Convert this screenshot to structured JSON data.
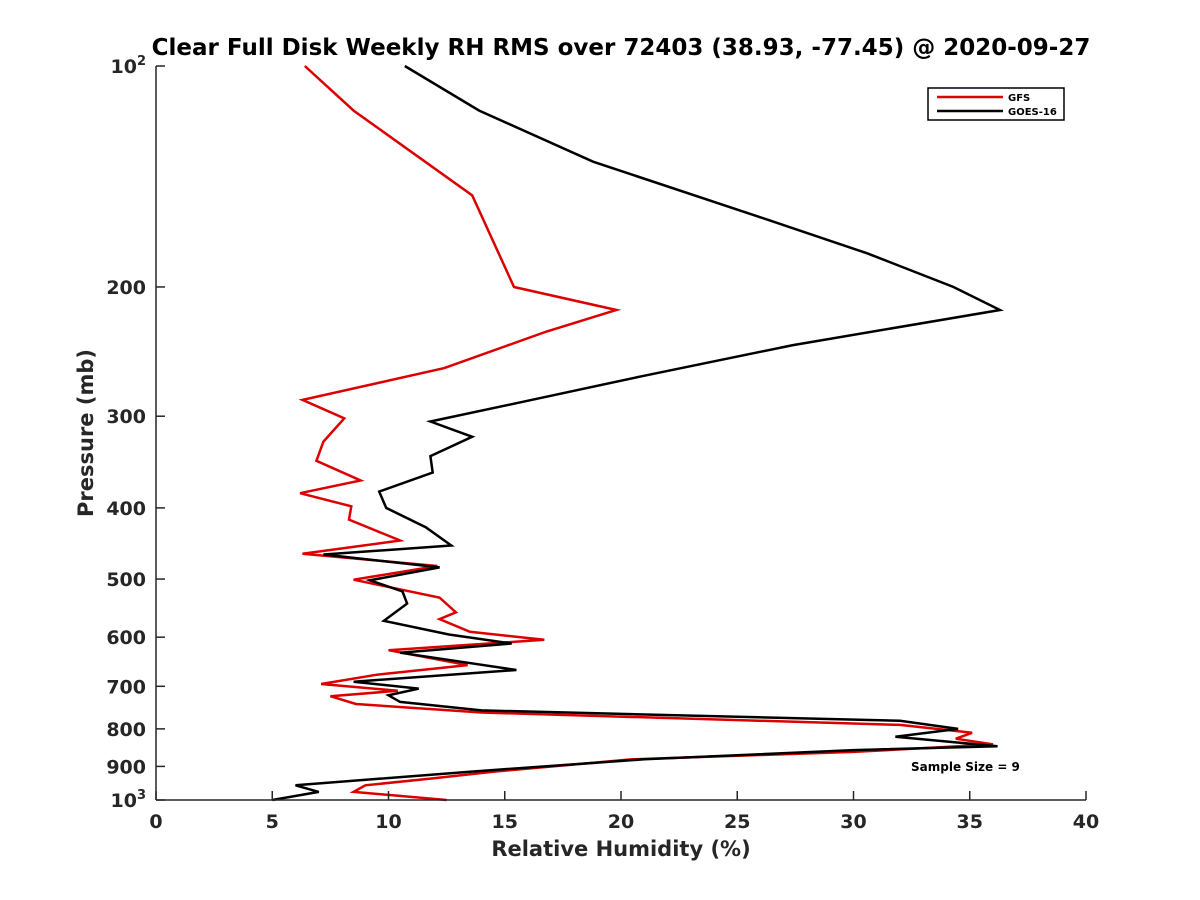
{
  "chart_data": {
    "type": "line",
    "title": "Clear Full Disk Weekly RH RMS over 72403 (38.93, -77.45) @ 2020-09-27",
    "xlabel": "Relative Humidity (%)",
    "ylabel": "Pressure (mb)",
    "xlim": [
      0,
      40
    ],
    "ylim": [
      100,
      1000
    ],
    "yscale": "log",
    "y_reversed": true,
    "x_ticks": [
      "0",
      "5",
      "10",
      "15",
      "20",
      "25",
      "30",
      "35",
      "40"
    ],
    "y_ticks": [
      {
        "value": 100,
        "base": "10",
        "exp": "2"
      },
      {
        "value": 200,
        "label": "200"
      },
      {
        "value": 300,
        "label": "300"
      },
      {
        "value": 400,
        "label": "400"
      },
      {
        "value": 500,
        "label": "500"
      },
      {
        "value": 600,
        "label": "600"
      },
      {
        "value": 700,
        "label": "700"
      },
      {
        "value": 800,
        "label": "800"
      },
      {
        "value": 900,
        "label": "900"
      },
      {
        "value": 1000,
        "base": "10",
        "exp": "3"
      }
    ],
    "legend_position": "top-right",
    "annotation": "Sample Size = 9",
    "series": [
      {
        "name": "GFS",
        "color": "#dd0000",
        "points": [
          [
            6.4,
            100
          ],
          [
            8.5,
            115
          ],
          [
            13.6,
            150
          ],
          [
            15.4,
            200
          ],
          [
            19.8,
            215
          ],
          [
            16.8,
            230
          ],
          [
            12.4,
            258
          ],
          [
            6.3,
            285
          ],
          [
            8.1,
            302
          ],
          [
            7.2,
            325
          ],
          [
            6.9,
            345
          ],
          [
            8.8,
            367
          ],
          [
            6.2,
            382
          ],
          [
            8.4,
            398
          ],
          [
            8.3,
            415
          ],
          [
            10.5,
            443
          ],
          [
            6.3,
            462
          ],
          [
            12.1,
            480
          ],
          [
            8.5,
            501
          ],
          [
            12.2,
            530
          ],
          [
            12.9,
            555
          ],
          [
            12.2,
            567
          ],
          [
            13.5,
            590
          ],
          [
            16.7,
            605
          ],
          [
            10.0,
            625
          ],
          [
            13.4,
            655
          ],
          [
            9.5,
            675
          ],
          [
            7.1,
            695
          ],
          [
            10.4,
            710
          ],
          [
            7.5,
            722
          ],
          [
            8.6,
            740
          ],
          [
            14.0,
            760
          ],
          [
            32.0,
            790
          ],
          [
            35.1,
            810
          ],
          [
            34.4,
            825
          ],
          [
            36.0,
            840
          ],
          [
            30.0,
            860
          ],
          [
            20.5,
            880
          ],
          [
            14.5,
            915
          ],
          [
            11.8,
            935
          ],
          [
            9.0,
            955
          ],
          [
            8.5,
            975
          ],
          [
            12.5,
            1000
          ]
        ]
      },
      {
        "name": "GOES-16",
        "color": "#000000",
        "points": [
          [
            10.7,
            100
          ],
          [
            13.9,
            115
          ],
          [
            18.8,
            135
          ],
          [
            25.8,
            160
          ],
          [
            30.6,
            180
          ],
          [
            34.3,
            200
          ],
          [
            36.3,
            215
          ],
          [
            27.4,
            240
          ],
          [
            20.8,
            265
          ],
          [
            15.5,
            288
          ],
          [
            11.8,
            305
          ],
          [
            13.6,
            320
          ],
          [
            11.8,
            340
          ],
          [
            11.9,
            358
          ],
          [
            9.6,
            380
          ],
          [
            9.9,
            400
          ],
          [
            11.6,
            425
          ],
          [
            12.7,
            450
          ],
          [
            7.2,
            463
          ],
          [
            12.2,
            482
          ],
          [
            9.2,
            502
          ],
          [
            10.6,
            520
          ],
          [
            10.8,
            540
          ],
          [
            9.8,
            570
          ],
          [
            12.6,
            595
          ],
          [
            15.3,
            612
          ],
          [
            10.5,
            630
          ],
          [
            15.5,
            665
          ],
          [
            8.5,
            690
          ],
          [
            11.3,
            705
          ],
          [
            10.0,
            720
          ],
          [
            10.5,
            735
          ],
          [
            14.0,
            755
          ],
          [
            32.0,
            780
          ],
          [
            34.5,
            800
          ],
          [
            31.8,
            820
          ],
          [
            36.2,
            845
          ],
          [
            30.0,
            855
          ],
          [
            21.0,
            880
          ],
          [
            13.5,
            915
          ],
          [
            6.0,
            955
          ],
          [
            7.0,
            975
          ],
          [
            5.0,
            1000
          ]
        ]
      }
    ]
  }
}
